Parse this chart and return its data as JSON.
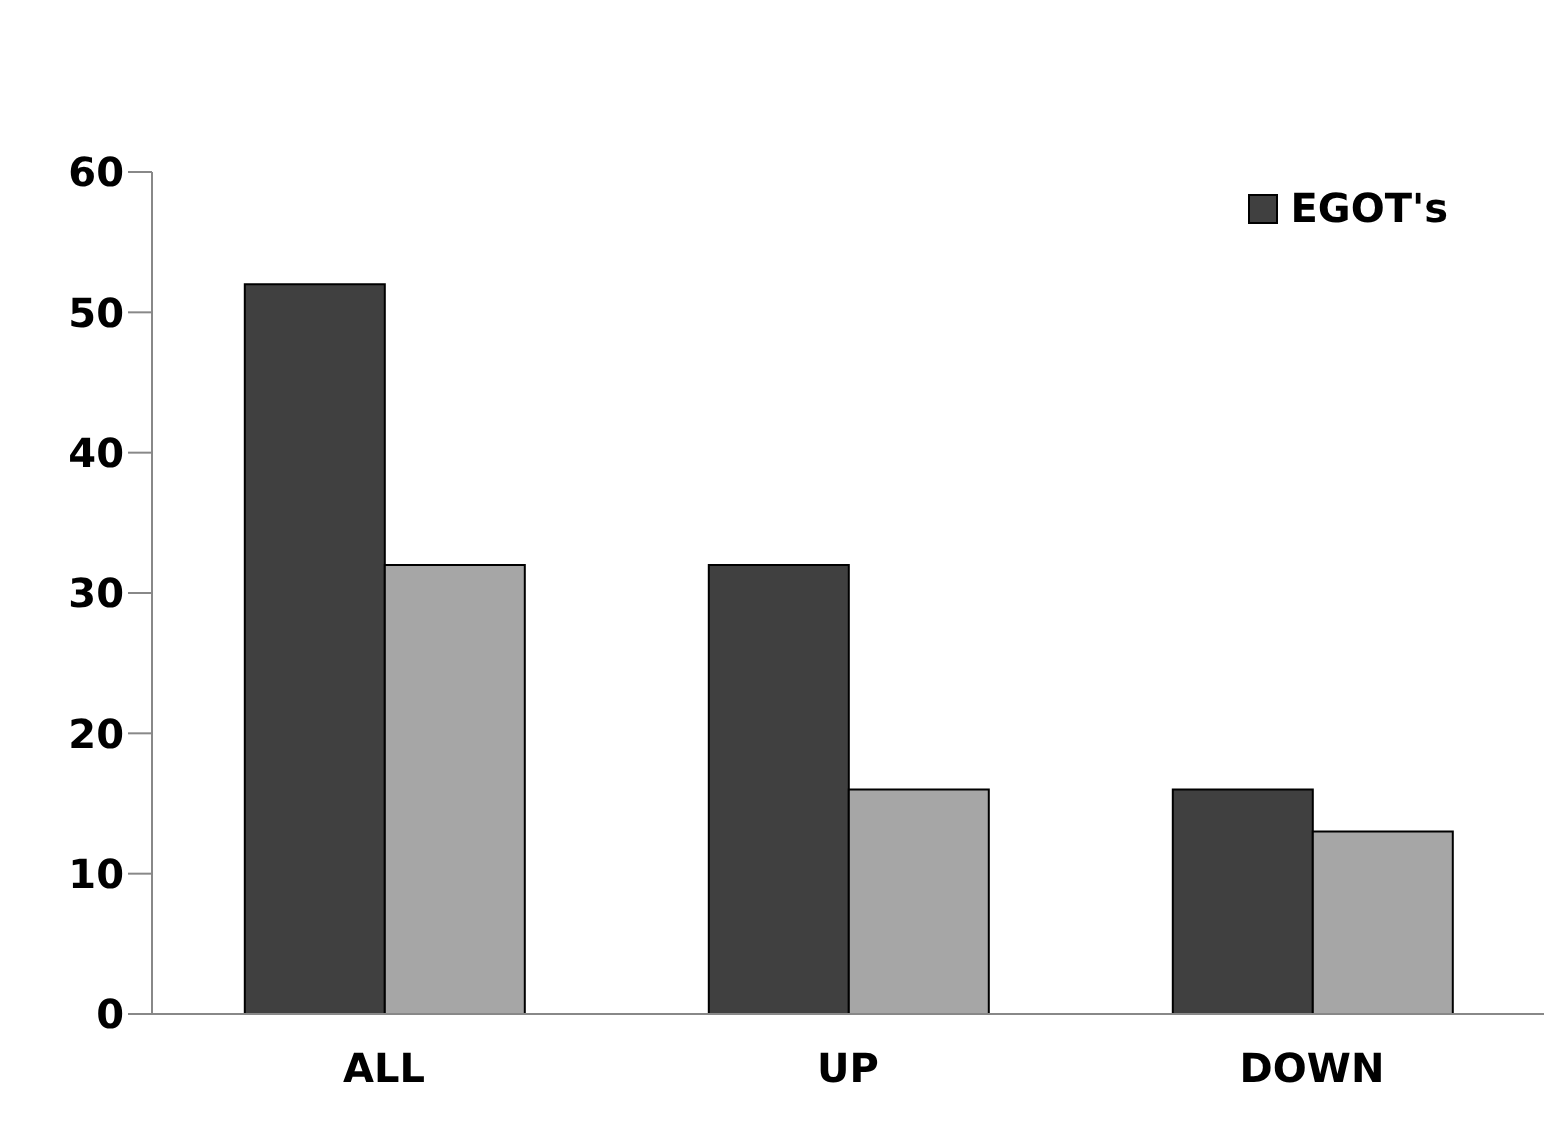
{
  "chart_data": {
    "type": "bar",
    "categories": [
      "ALL",
      "UP",
      "DOWN"
    ],
    "series": [
      {
        "name": "EGOT's",
        "color": "#404040",
        "values": [
          52,
          32,
          16
        ]
      },
      {
        "color": "#a6a6a6",
        "values": [
          32,
          16,
          13
        ]
      }
    ],
    "ylim": [
      0,
      60
    ],
    "yticks": [
      0,
      10,
      20,
      30,
      40,
      50,
      60
    ],
    "grid": false,
    "legend": "top right"
  }
}
